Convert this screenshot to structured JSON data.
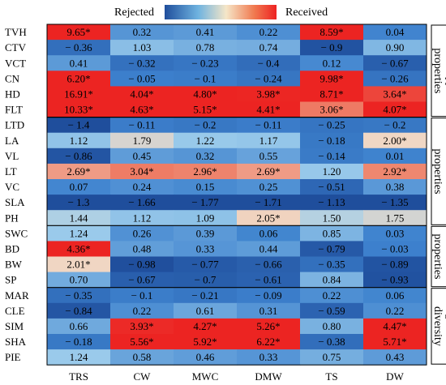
{
  "chart_data": {
    "type": "heatmap",
    "legend": {
      "low_label": "Rejected",
      "high_label": "Received",
      "placement": "top-center"
    },
    "colors": {
      "low": "#1f4e9c",
      "mid_low": "#6fb3e0",
      "mid_high": "#f0d9c8",
      "high": "#ee2222"
    },
    "columns": [
      "TRS",
      "CW",
      "MWC",
      "DMW",
      "TS",
      "DW"
    ],
    "rows": [
      "TVH",
      "CTV",
      "VCT",
      "CN",
      "HD",
      "FLT",
      "LTD",
      "LA",
      "VL",
      "LT",
      "VC",
      "SLA",
      "PH",
      "SWC",
      "BD",
      "BW",
      "SP",
      "MAR",
      "CLE",
      "SIM",
      "SHA",
      "PIE"
    ],
    "groups": [
      {
        "label": "Canopy properties",
        "start": 0,
        "end": 5
      },
      {
        "label": "Grass properties",
        "start": 6,
        "end": 12
      },
      {
        "label": "Soil properties",
        "start": 13,
        "end": 16
      },
      {
        "label": "Vegetation diversity",
        "start": 17,
        "end": 21
      }
    ],
    "values": [
      [
        9.65,
        0.32,
        0.41,
        0.22,
        8.59,
        0.04
      ],
      [
        -0.36,
        1.03,
        0.78,
        0.74,
        -0.9,
        0.9
      ],
      [
        0.41,
        -0.32,
        -0.23,
        -0.4,
        0.12,
        -0.67
      ],
      [
        6.2,
        -0.05,
        -0.1,
        -0.24,
        9.98,
        -0.26
      ],
      [
        16.91,
        4.04,
        4.8,
        3.98,
        8.71,
        3.64
      ],
      [
        10.33,
        4.63,
        5.15,
        4.41,
        3.06,
        4.07
      ],
      [
        -1.4,
        -0.11,
        -0.2,
        -0.11,
        -0.25,
        -0.2
      ],
      [
        1.12,
        1.79,
        1.22,
        1.17,
        -0.18,
        2.0
      ],
      [
        -0.86,
        0.45,
        0.32,
        0.55,
        -0.14,
        0.01
      ],
      [
        2.69,
        3.04,
        2.96,
        2.69,
        1.2,
        2.92
      ],
      [
        0.07,
        0.24,
        0.15,
        0.25,
        -0.51,
        0.38
      ],
      [
        -1.3,
        -1.66,
        -1.77,
        -1.71,
        -1.13,
        -1.35
      ],
      [
        1.44,
        1.12,
        1.09,
        2.05,
        1.5,
        1.75
      ],
      [
        1.24,
        0.26,
        0.39,
        0.06,
        0.85,
        0.03
      ],
      [
        4.36,
        0.48,
        0.33,
        0.44,
        -0.79,
        -0.03
      ],
      [
        2.01,
        -0.98,
        -0.77,
        -0.66,
        -0.35,
        -0.89
      ],
      [
        0.7,
        -0.67,
        -0.7,
        -0.61,
        0.84,
        -0.93
      ],
      [
        -0.35,
        -0.1,
        -0.21,
        -0.09,
        0.22,
        0.06
      ],
      [
        -0.84,
        0.22,
        0.61,
        0.31,
        -0.59,
        0.22
      ],
      [
        0.66,
        3.93,
        4.27,
        5.26,
        0.8,
        4.47
      ],
      [
        -0.18,
        5.56,
        5.92,
        6.22,
        -0.38,
        5.71
      ],
      [
        1.24,
        0.58,
        0.46,
        0.33,
        0.75,
        0.43
      ]
    ],
    "labels": [
      [
        "9.65*",
        "0.32",
        "0.41",
        "0.22",
        "8.59*",
        "0.04"
      ],
      [
        "− 0.36",
        "1.03",
        "0.78",
        "0.74",
        "− 0.9",
        "0.90"
      ],
      [
        "0.41",
        "− 0.32",
        "− 0.23",
        "− 0.4",
        "0.12",
        "− 0.67"
      ],
      [
        "6.20*",
        "− 0.05",
        "− 0.1",
        "− 0.24",
        "9.98*",
        "− 0.26"
      ],
      [
        "16.91*",
        "4.04*",
        "4.80*",
        "3.98*",
        "8.71*",
        "3.64*"
      ],
      [
        "10.33*",
        "4.63*",
        "5.15*",
        "4.41*",
        "3.06*",
        "4.07*"
      ],
      [
        "− 1.4",
        "− 0.11",
        "− 0.2",
        "− 0.11",
        "− 0.25",
        "− 0.2"
      ],
      [
        "1.12",
        "1.79",
        "1.22",
        "1.17",
        "− 0.18",
        "2.00*"
      ],
      [
        "− 0.86",
        "0.45",
        "0.32",
        "0.55",
        "− 0.14",
        "0.01"
      ],
      [
        "2.69*",
        "3.04*",
        "2.96*",
        "2.69*",
        "1.20",
        "2.92*"
      ],
      [
        "0.07",
        "0.24",
        "0.15",
        "0.25",
        "− 0.51",
        "0.38"
      ],
      [
        "− 1.3",
        "− 1.66",
        "− 1.77",
        "− 1.71",
        "− 1.13",
        "− 1.35"
      ],
      [
        "1.44",
        "1.12",
        "1.09",
        "2.05*",
        "1.50",
        "1.75"
      ],
      [
        "1.24",
        "0.26",
        "0.39",
        "0.06",
        "0.85",
        "0.03"
      ],
      [
        "4.36*",
        "0.48",
        "0.33",
        "0.44",
        "− 0.79",
        "− 0.03"
      ],
      [
        "2.01*",
        "− 0.98",
        "− 0.77",
        "− 0.66",
        "− 0.35",
        "− 0.89"
      ],
      [
        "0.70",
        "− 0.67",
        "− 0.7",
        "− 0.61",
        "0.84",
        "− 0.93"
      ],
      [
        "− 0.35",
        "− 0.1",
        "− 0.21",
        "− 0.09",
        "0.22",
        "0.06"
      ],
      [
        "− 0.84",
        "0.22",
        "0.61",
        "0.31",
        "− 0.59",
        "0.22"
      ],
      [
        "0.66",
        "3.93*",
        "4.27*",
        "5.26*",
        "0.80",
        "4.47*"
      ],
      [
        "− 0.18",
        "5.56*",
        "5.92*",
        "6.22*",
        "− 0.38",
        "5.71*"
      ],
      [
        "1.24",
        "0.58",
        "0.46",
        "0.33",
        "0.75",
        "0.43"
      ]
    ]
  }
}
